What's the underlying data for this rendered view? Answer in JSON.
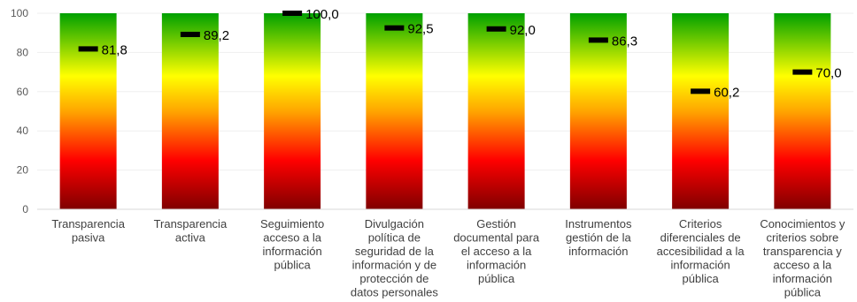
{
  "chart_data": {
    "type": "bar",
    "title": "",
    "xlabel": "",
    "ylabel": "",
    "ylim": [
      0,
      100
    ],
    "yticks": [
      0,
      20,
      40,
      60,
      80,
      100
    ],
    "grid": true,
    "legend": "none",
    "bar_fill": "vertical gradient: dark red (bottom) → red → yellow → green (top)",
    "gradient_colors": [
      "#7f0000",
      "#ff0000",
      "#ffa500",
      "#ffff00",
      "#00a000"
    ],
    "marker_color": "#000000",
    "categories": [
      [
        "Transparencia",
        "pasiva"
      ],
      [
        "Transparencia",
        "activa"
      ],
      [
        "Seguimiento",
        "acceso a la",
        "información",
        "pública"
      ],
      [
        "Divulgación",
        "política de",
        "seguridad de la",
        "información y de",
        "protección de",
        "datos personales"
      ],
      [
        "Gestión",
        "documental para",
        "el acceso a la",
        "información",
        "pública"
      ],
      [
        "Instrumentos",
        "gestión de la",
        "información"
      ],
      [
        "Criterios",
        "diferenciales de",
        "accesibilidad a la",
        "información",
        "pública"
      ],
      [
        "Conocimientos y",
        "criterios sobre",
        "transparencia y",
        "acceso a la",
        "información",
        "pública"
      ]
    ],
    "values": [
      81.8,
      89.2,
      100.0,
      92.5,
      92.0,
      86.3,
      60.2,
      70.0
    ],
    "value_labels": [
      "81,8",
      "89,2",
      "100,0",
      "92,5",
      "92,0",
      "86,3",
      "60,2",
      "70,0"
    ]
  }
}
